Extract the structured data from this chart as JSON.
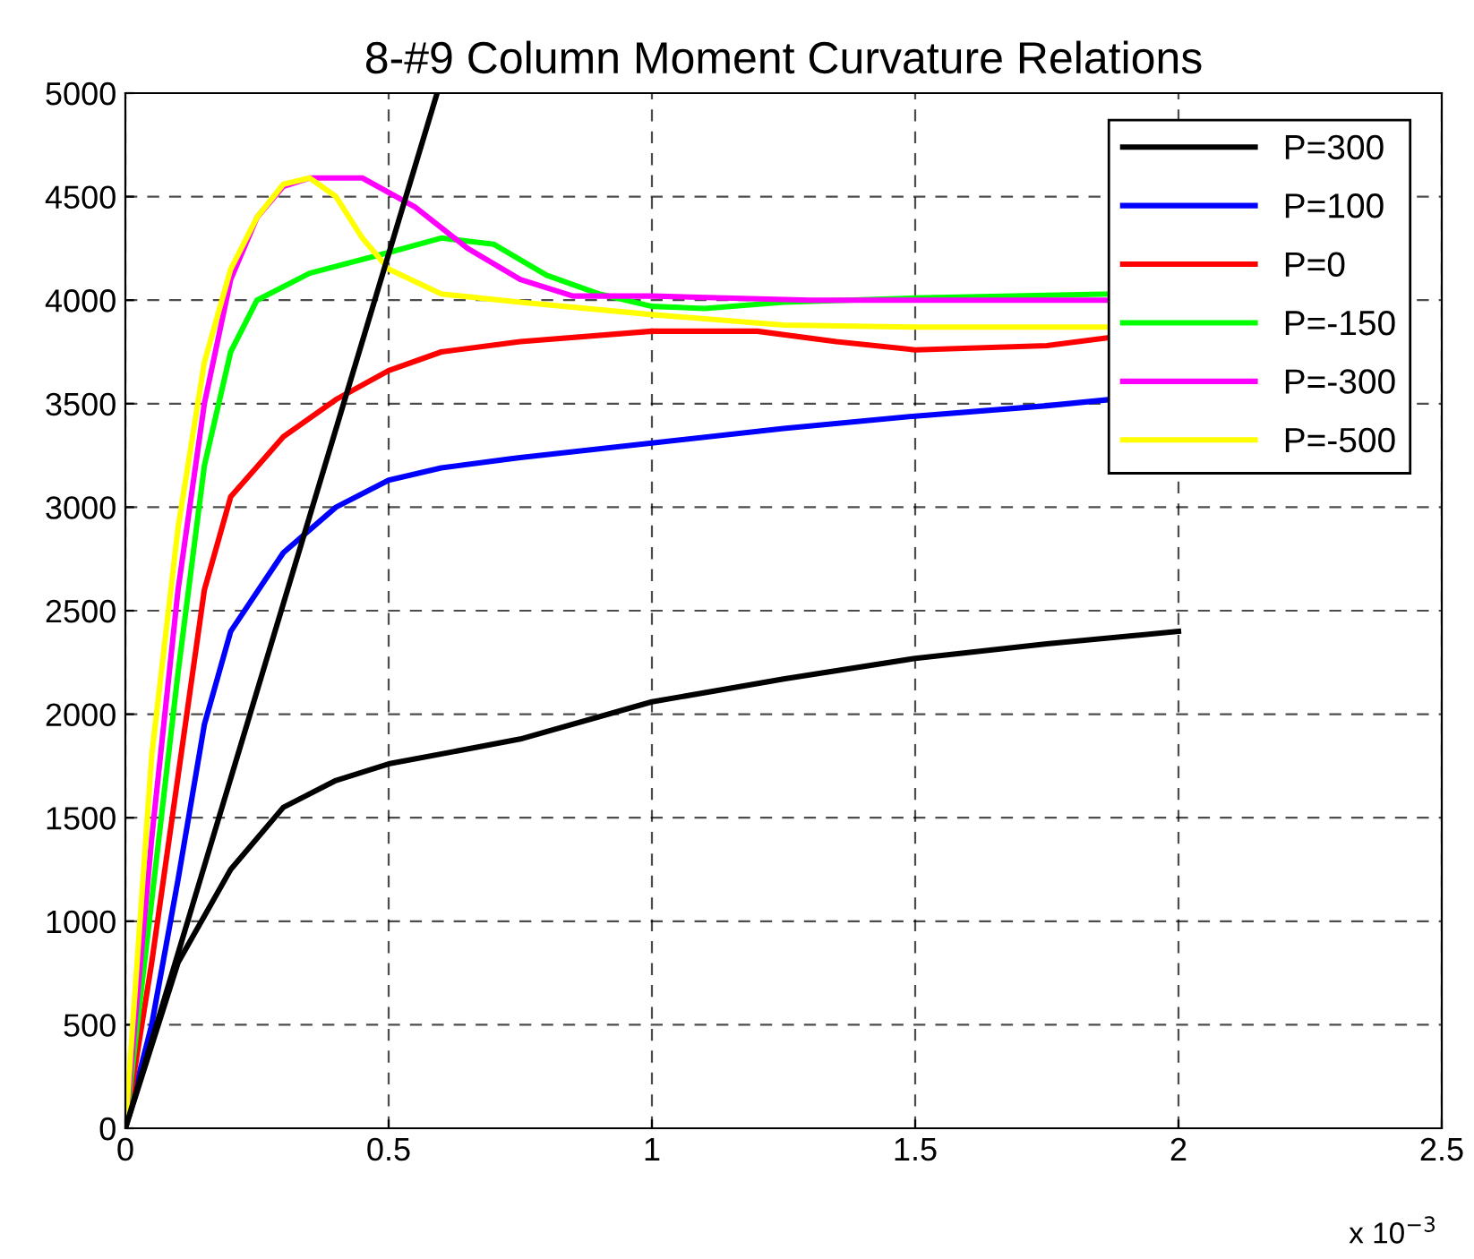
{
  "chart_data": {
    "type": "line",
    "title": "8-#9 Column Moment Curvature Relations",
    "xlim": [
      0,
      2.5
    ],
    "xticks": [
      0,
      0.5,
      1,
      1.5,
      2,
      2.5
    ],
    "ylim": [
      0,
      5000
    ],
    "yticks": [
      0,
      500,
      1000,
      1500,
      2000,
      2500,
      3000,
      3500,
      4000,
      4500,
      5000
    ],
    "grid": true,
    "legend": "top right",
    "line_style": "solid",
    "marker": "none",
    "annotations": [
      "x 10$^{−3}$"
    ],
    "series": [
      {
        "name": "P=300",
        "color": "#000000",
        "x": [
          0,
          0.1,
          0.2,
          0.3,
          0.4,
          0.5,
          0.75,
          1.0,
          1.25,
          1.5,
          1.75,
          2.0
        ],
        "values": [
          0,
          800,
          1250,
          1550,
          1680,
          1760,
          1880,
          2060,
          2170,
          2270,
          2340,
          2400
        ]
      },
      {
        "name": "P=100",
        "color": "#0000ff",
        "x": [
          0,
          0.05,
          0.1,
          0.15,
          0.2,
          0.3,
          0.4,
          0.5,
          0.6,
          0.75,
          1.0,
          1.25,
          1.5,
          1.75,
          1.87
        ],
        "values": [
          0,
          500,
          1200,
          1950,
          2400,
          2780,
          3000,
          3130,
          3190,
          3240,
          3310,
          3380,
          3440,
          3490,
          3520
        ]
      },
      {
        "name": "P=0",
        "color": "#ff0000",
        "x": [
          0,
          0.05,
          0.1,
          0.15,
          0.2,
          0.3,
          0.4,
          0.5,
          0.6,
          0.75,
          1.0,
          1.2,
          1.35,
          1.5,
          1.75,
          1.87
        ],
        "values": [
          0,
          800,
          1700,
          2600,
          3050,
          3340,
          3520,
          3660,
          3750,
          3800,
          3850,
          3850,
          3800,
          3760,
          3780,
          3820
        ]
      },
      {
        "name": "P=-150",
        "color": "#00ff00",
        "x": [
          0,
          0.05,
          0.1,
          0.15,
          0.2,
          0.25,
          0.35,
          0.5,
          0.6,
          0.7,
          0.8,
          0.9,
          1.0,
          1.1,
          1.25,
          1.5,
          1.87
        ],
        "values": [
          0,
          1100,
          2200,
          3200,
          3750,
          4000,
          4130,
          4230,
          4300,
          4270,
          4120,
          4030,
          3970,
          3960,
          3990,
          4010,
          4030
        ]
      },
      {
        "name": "P=-300",
        "color": "#ff00ff",
        "x": [
          0,
          0.05,
          0.1,
          0.15,
          0.2,
          0.25,
          0.3,
          0.35,
          0.45,
          0.55,
          0.65,
          0.75,
          0.85,
          1.0,
          1.3,
          1.87
        ],
        "values": [
          0,
          1400,
          2600,
          3500,
          4100,
          4400,
          4550,
          4590,
          4590,
          4450,
          4250,
          4100,
          4020,
          4020,
          4000,
          4000
        ]
      },
      {
        "name": "P=-500",
        "color": "#ffff00",
        "x": [
          0,
          0.05,
          0.1,
          0.15,
          0.2,
          0.25,
          0.3,
          0.35,
          0.4,
          0.45,
          0.5,
          0.6,
          0.75,
          1.0,
          1.25,
          1.5,
          1.87
        ],
        "values": [
          0,
          1800,
          2900,
          3700,
          4150,
          4400,
          4560,
          4590,
          4500,
          4300,
          4150,
          4030,
          3990,
          3930,
          3880,
          3870,
          3870
        ]
      },
      {
        "color": "#000000",
        "x": [
          0,
          0.592
        ],
        "values": [
          0,
          5000
        ]
      }
    ]
  }
}
